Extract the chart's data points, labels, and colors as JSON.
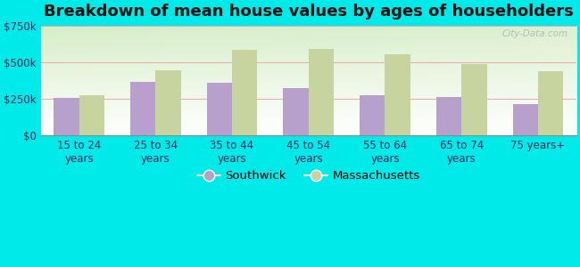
{
  "title": "Breakdown of mean house values by ages of householders",
  "categories": [
    "15 to 24\nyears",
    "25 to 34\nyears",
    "35 to 44\nyears",
    "45 to 54\nyears",
    "55 to 64\nyears",
    "65 to 74\nyears",
    "75 years+"
  ],
  "southwick": [
    255000,
    370000,
    360000,
    325000,
    275000,
    262000,
    215000
  ],
  "massachusetts": [
    278000,
    448000,
    590000,
    595000,
    558000,
    492000,
    440000
  ],
  "southwick_color": "#b8a0cc",
  "massachusetts_color": "#c8d4a0",
  "background_color": "#00eaea",
  "ylim": [
    0,
    750000
  ],
  "yticks": [
    0,
    250000,
    500000,
    750000
  ],
  "ytick_labels": [
    "$0",
    "$250k",
    "$500k",
    "$750k"
  ],
  "legend_southwick": "Southwick",
  "legend_massachusetts": "Massachusetts",
  "watermark": "City-Data.com",
  "title_fontsize": 13,
  "tick_fontsize": 8.5,
  "legend_fontsize": 9.5
}
